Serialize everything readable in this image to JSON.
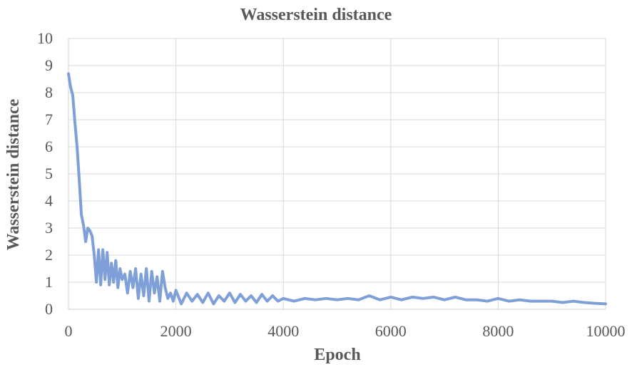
{
  "chart_data": {
    "type": "line",
    "title": "Wasserstein distance",
    "xlabel": "Epoch",
    "ylabel": "Wasserstein distance",
    "xlim": [
      0,
      10000
    ],
    "ylim": [
      0,
      10
    ],
    "x_ticks": [
      0,
      2000,
      4000,
      6000,
      8000,
      10000
    ],
    "y_ticks": [
      0,
      1,
      2,
      3,
      4,
      5,
      6,
      7,
      8,
      9,
      10
    ],
    "grid": true,
    "colors": {
      "line": "#7f9fd8",
      "grid": "#d9d9d9",
      "text": "#595959"
    },
    "series": [
      {
        "x": [
          0,
          40,
          80,
          120,
          160,
          200,
          240,
          280,
          320,
          360,
          400,
          440,
          480,
          520,
          560,
          600,
          640,
          680,
          720,
          760,
          800,
          840,
          880,
          920,
          960,
          1000,
          1050,
          1100,
          1150,
          1200,
          1250,
          1300,
          1350,
          1400,
          1450,
          1500,
          1550,
          1600,
          1650,
          1700,
          1750,
          1800,
          1850,
          1900,
          1950,
          2000,
          2100,
          2200,
          2300,
          2400,
          2500,
          2600,
          2700,
          2800,
          2900,
          3000,
          3100,
          3200,
          3300,
          3400,
          3500,
          3600,
          3700,
          3800,
          3900,
          4000,
          4200,
          4400,
          4600,
          4800,
          5000,
          5200,
          5400,
          5600,
          5800,
          6000,
          6200,
          6400,
          6600,
          6800,
          7000,
          7200,
          7400,
          7600,
          7800,
          8000,
          8200,
          8400,
          8600,
          8800,
          9000,
          9200,
          9400,
          9600,
          9800,
          10000
        ],
        "y": [
          8.7,
          8.2,
          7.9,
          6.9,
          6.0,
          4.8,
          3.5,
          3.1,
          2.5,
          3.0,
          2.9,
          2.7,
          2.0,
          1.0,
          2.2,
          0.9,
          2.2,
          1.1,
          2.1,
          0.9,
          1.7,
          1.0,
          1.8,
          0.8,
          1.5,
          1.1,
          1.3,
          0.6,
          1.4,
          0.8,
          1.5,
          0.4,
          1.3,
          0.5,
          1.5,
          0.3,
          1.4,
          0.6,
          1.2,
          0.3,
          1.4,
          0.8,
          0.4,
          0.6,
          0.3,
          0.7,
          0.2,
          0.6,
          0.3,
          0.55,
          0.25,
          0.6,
          0.2,
          0.5,
          0.3,
          0.6,
          0.25,
          0.55,
          0.3,
          0.5,
          0.25,
          0.55,
          0.3,
          0.5,
          0.3,
          0.4,
          0.3,
          0.4,
          0.35,
          0.4,
          0.35,
          0.4,
          0.35,
          0.5,
          0.35,
          0.45,
          0.35,
          0.45,
          0.4,
          0.45,
          0.35,
          0.45,
          0.35,
          0.35,
          0.3,
          0.4,
          0.3,
          0.35,
          0.3,
          0.3,
          0.3,
          0.25,
          0.3,
          0.25,
          0.22,
          0.2
        ]
      }
    ]
  }
}
